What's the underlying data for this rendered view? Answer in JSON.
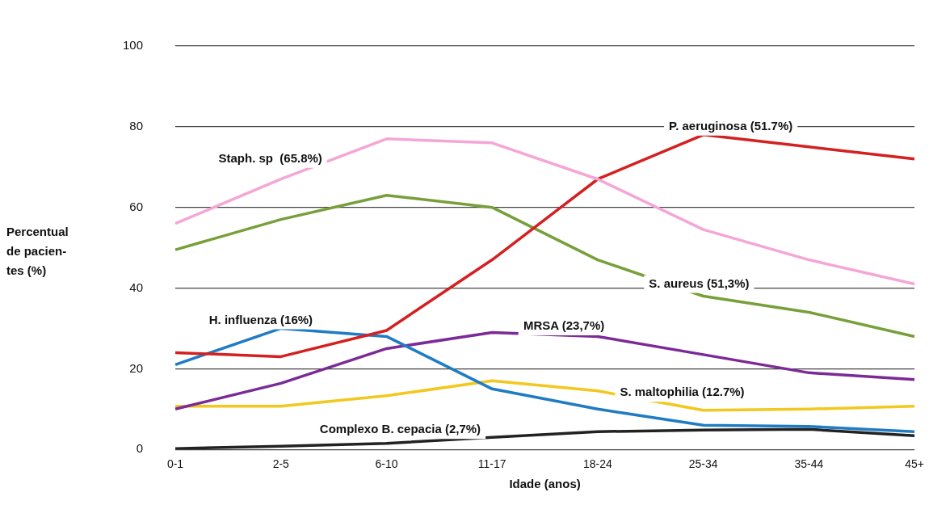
{
  "chart_data": {
    "type": "line",
    "xlabel": "Idade (anos)",
    "ylabel": "Percentual de pacien-tes (%)",
    "categories": [
      "0-1",
      "2-5",
      "6-10",
      "11-17",
      "18-24",
      "25-34",
      "35-44",
      "45+"
    ],
    "ylim": [
      0,
      100
    ],
    "yticks": [
      0,
      20,
      40,
      60,
      80,
      100
    ],
    "grid": "y",
    "legend": false,
    "marker": "none",
    "line_style": "solid",
    "series": [
      {
        "name": "Staph. sp  (65.8%)",
        "color": "#f4a6d7",
        "values": [
          56,
          67,
          77,
          76,
          67,
          54.5,
          47,
          41
        ]
      },
      {
        "name": "P. aeruginosa (51.7%)",
        "color": "#d42020",
        "values": [
          24,
          23,
          29.5,
          47,
          67,
          78,
          75,
          72
        ]
      },
      {
        "name": "S. aureus (51,3%)",
        "color": "#77a03a",
        "values": [
          49.5,
          57,
          63,
          60,
          47,
          38,
          34,
          28
        ]
      },
      {
        "name": "H. influenza (16%)",
        "color": "#1f7cc4",
        "values": [
          21,
          30,
          28,
          15,
          10,
          6,
          5.7,
          4.4
        ]
      },
      {
        "name": "MRSA (23,7%)",
        "color": "#7b2a96",
        "values": [
          10,
          16.4,
          25,
          29,
          28,
          23.5,
          19,
          17.3
        ]
      },
      {
        "name": "S. maltophilia (12.7%)",
        "color": "#f2c81e",
        "values": [
          10.7,
          10.7,
          13.3,
          17,
          14.5,
          9.7,
          10,
          10.7
        ]
      },
      {
        "name": "Complexo B. cepacia (2,7%)",
        "color": "#222222",
        "values": [
          0.2,
          0.8,
          1.5,
          3,
          4.4,
          4.8,
          5,
          3.4
        ]
      }
    ]
  }
}
